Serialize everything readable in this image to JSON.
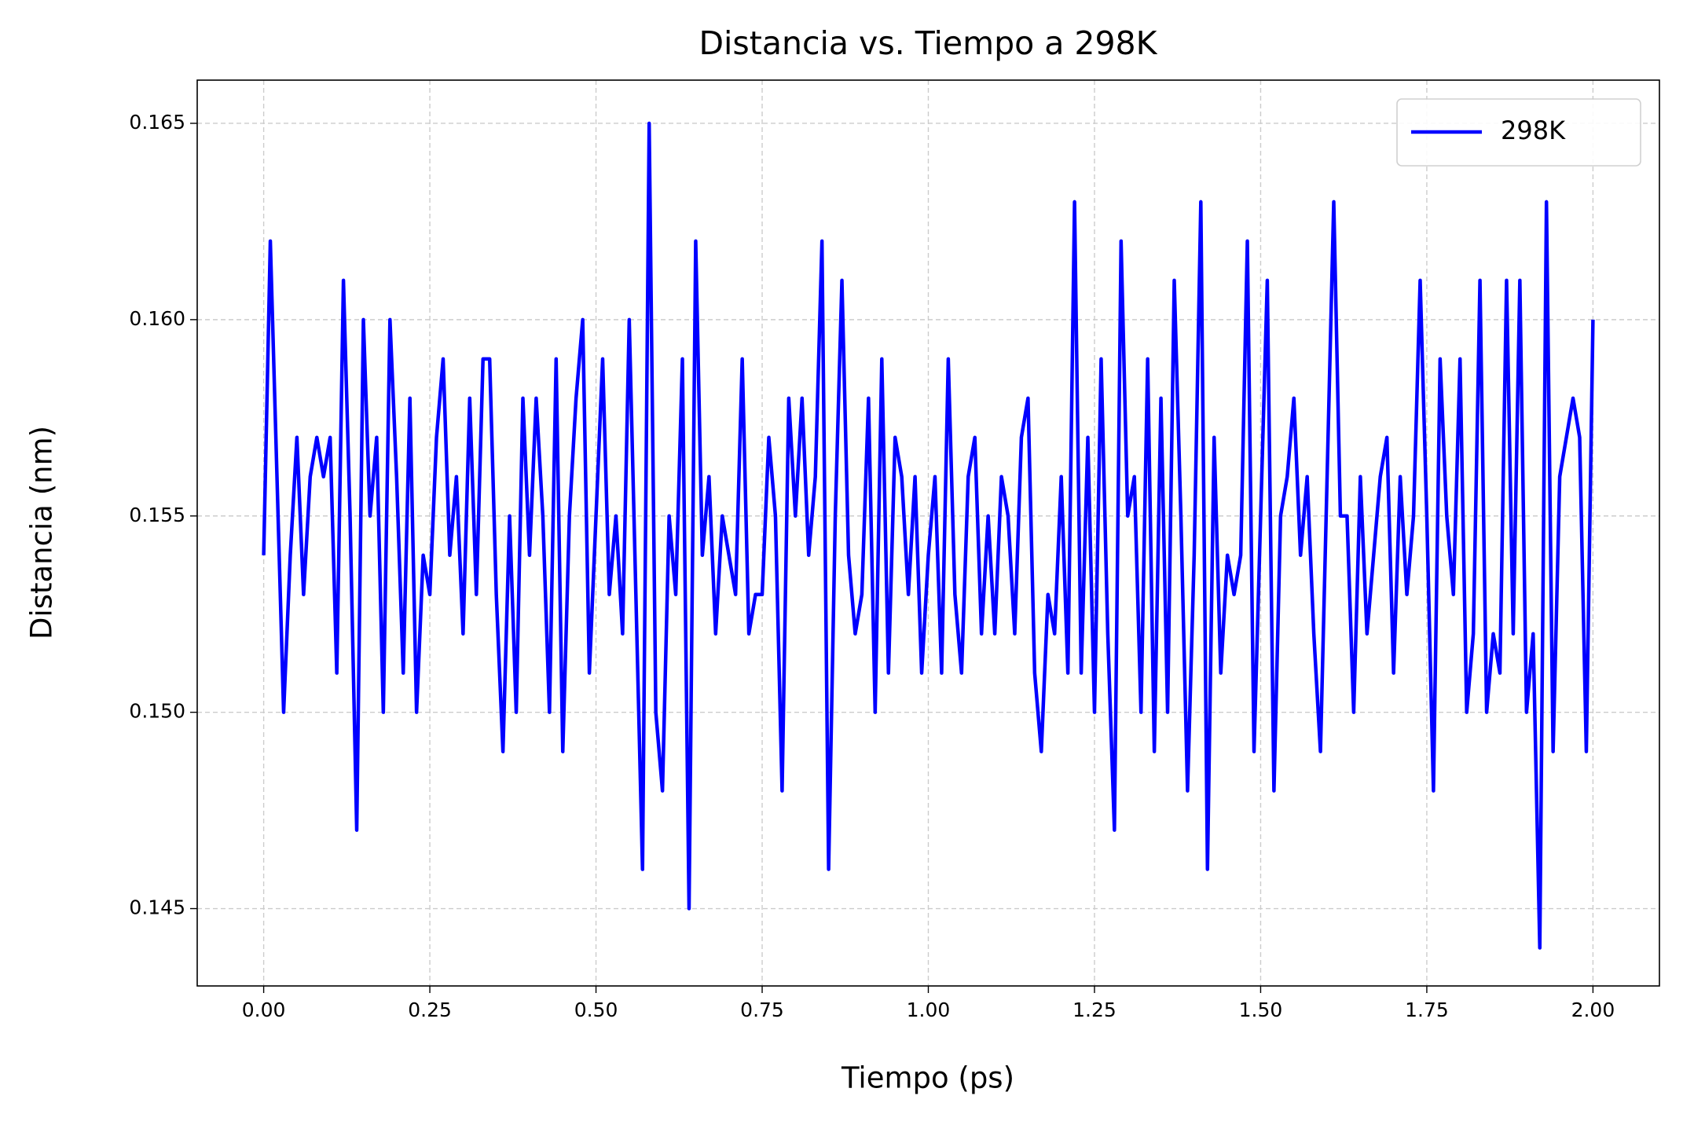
{
  "chart_data": {
    "type": "line",
    "title": "Distancia vs. Tiempo a 298K",
    "xlabel": "Tiempo (ps)",
    "ylabel": "Distancia (nm)",
    "x": [
      0.0,
      0.01,
      0.02,
      0.03,
      0.04,
      0.05,
      0.06,
      0.07,
      0.08,
      0.09,
      0.1,
      0.11,
      0.12,
      0.13,
      0.14,
      0.15,
      0.16,
      0.17,
      0.18,
      0.19,
      0.2,
      0.21,
      0.22,
      0.23,
      0.24,
      0.25,
      0.26,
      0.27,
      0.28,
      0.29,
      0.3,
      0.31,
      0.32,
      0.33,
      0.34,
      0.35,
      0.36,
      0.37,
      0.38,
      0.39,
      0.4,
      0.41,
      0.42,
      0.43,
      0.44,
      0.45,
      0.46,
      0.47,
      0.48,
      0.49,
      0.5,
      0.51,
      0.52,
      0.53,
      0.54,
      0.55,
      0.56,
      0.57,
      0.58,
      0.59,
      0.6,
      0.61,
      0.62,
      0.63,
      0.64,
      0.65,
      0.66,
      0.67,
      0.68,
      0.69,
      0.7,
      0.71,
      0.72,
      0.73,
      0.74,
      0.75,
      0.76,
      0.77,
      0.78,
      0.79,
      0.8,
      0.81,
      0.82,
      0.83,
      0.84,
      0.85,
      0.86,
      0.87,
      0.88,
      0.89,
      0.9,
      0.91,
      0.92,
      0.93,
      0.94,
      0.95,
      0.96,
      0.97,
      0.98,
      0.99,
      1.0,
      1.01,
      1.02,
      1.03,
      1.04,
      1.05,
      1.06,
      1.07,
      1.08,
      1.09,
      1.1,
      1.11,
      1.12,
      1.13,
      1.14,
      1.15,
      1.16,
      1.17,
      1.18,
      1.19,
      1.2,
      1.21,
      1.22,
      1.23,
      1.24,
      1.25,
      1.26,
      1.27,
      1.28,
      1.29,
      1.3,
      1.31,
      1.32,
      1.33,
      1.34,
      1.35,
      1.36,
      1.37,
      1.38,
      1.39,
      1.4,
      1.41,
      1.42,
      1.43,
      1.44,
      1.45,
      1.46,
      1.47,
      1.48,
      1.49,
      1.5,
      1.51,
      1.52,
      1.53,
      1.54,
      1.55,
      1.56,
      1.57,
      1.58,
      1.59,
      1.6,
      1.61,
      1.62,
      1.63,
      1.64,
      1.65,
      1.66,
      1.67,
      1.68,
      1.69,
      1.7,
      1.71,
      1.72,
      1.73,
      1.74,
      1.75,
      1.76,
      1.77,
      1.78,
      1.79,
      1.8,
      1.81,
      1.82,
      1.83,
      1.84,
      1.85,
      1.86,
      1.87,
      1.88,
      1.89,
      1.9,
      1.91,
      1.92,
      1.93,
      1.94,
      1.95,
      1.96,
      1.97,
      1.98,
      1.99,
      2.0
    ],
    "series": [
      {
        "name": "298K",
        "color": "#0000ff",
        "values": [
          0.154,
          0.162,
          0.156,
          0.15,
          0.154,
          0.157,
          0.153,
          0.156,
          0.157,
          0.156,
          0.157,
          0.151,
          0.161,
          0.155,
          0.147,
          0.16,
          0.155,
          0.157,
          0.15,
          0.16,
          0.156,
          0.151,
          0.158,
          0.15,
          0.154,
          0.153,
          0.157,
          0.159,
          0.154,
          0.156,
          0.152,
          0.158,
          0.153,
          0.159,
          0.159,
          0.153,
          0.149,
          0.155,
          0.15,
          0.158,
          0.154,
          0.158,
          0.155,
          0.15,
          0.159,
          0.149,
          0.155,
          0.158,
          0.16,
          0.151,
          0.155,
          0.159,
          0.153,
          0.155,
          0.152,
          0.16,
          0.153,
          0.146,
          0.165,
          0.15,
          0.148,
          0.155,
          0.153,
          0.159,
          0.145,
          0.162,
          0.154,
          0.156,
          0.152,
          0.155,
          0.154,
          0.153,
          0.159,
          0.152,
          0.153,
          0.153,
          0.157,
          0.155,
          0.148,
          0.158,
          0.155,
          0.158,
          0.154,
          0.156,
          0.162,
          0.146,
          0.155,
          0.161,
          0.154,
          0.152,
          0.153,
          0.158,
          0.15,
          0.159,
          0.151,
          0.157,
          0.156,
          0.153,
          0.156,
          0.151,
          0.154,
          0.156,
          0.151,
          0.159,
          0.153,
          0.151,
          0.156,
          0.157,
          0.152,
          0.155,
          0.152,
          0.156,
          0.155,
          0.152,
          0.157,
          0.158,
          0.151,
          0.149,
          0.153,
          0.152,
          0.156,
          0.151,
          0.163,
          0.151,
          0.157,
          0.15,
          0.159,
          0.152,
          0.147,
          0.162,
          0.155,
          0.156,
          0.15,
          0.159,
          0.149,
          0.158,
          0.15,
          0.161,
          0.155,
          0.148,
          0.154,
          0.163,
          0.146,
          0.157,
          0.151,
          0.154,
          0.153,
          0.154,
          0.162,
          0.149,
          0.155,
          0.161,
          0.148,
          0.155,
          0.156,
          0.158,
          0.154,
          0.156,
          0.152,
          0.149,
          0.156,
          0.163,
          0.155,
          0.155,
          0.15,
          0.156,
          0.152,
          0.154,
          0.156,
          0.157,
          0.151,
          0.156,
          0.153,
          0.155,
          0.161,
          0.155,
          0.148,
          0.159,
          0.155,
          0.153,
          0.159,
          0.15,
          0.152,
          0.161,
          0.15,
          0.152,
          0.151,
          0.161,
          0.152,
          0.161,
          0.15,
          0.152,
          0.144,
          0.163,
          0.149,
          0.156,
          0.157,
          0.158,
          0.157,
          0.149,
          0.16
        ]
      }
    ],
    "xlim": [
      -0.1,
      2.1
    ],
    "ylim": [
      0.14303,
      0.1661
    ],
    "xticks": [
      {
        "value": 0,
        "label": "0.00"
      },
      {
        "value": 0.25,
        "label": "0.25"
      },
      {
        "value": 0.5,
        "label": "0.50"
      },
      {
        "value": 0.75,
        "label": "0.75"
      },
      {
        "value": 1,
        "label": "1.00"
      },
      {
        "value": 1.25,
        "label": "1.25"
      },
      {
        "value": 1.5,
        "label": "1.50"
      },
      {
        "value": 1.75,
        "label": "1.75"
      },
      {
        "value": 2,
        "label": "2.00"
      }
    ],
    "yticks": [
      0.145,
      {
        "value": 0.15,
        "label": "0.150"
      },
      0.155,
      {
        "value": 0.16,
        "label": "0.160"
      },
      0.165
    ],
    "grid": true,
    "legend": "upper-right"
  }
}
